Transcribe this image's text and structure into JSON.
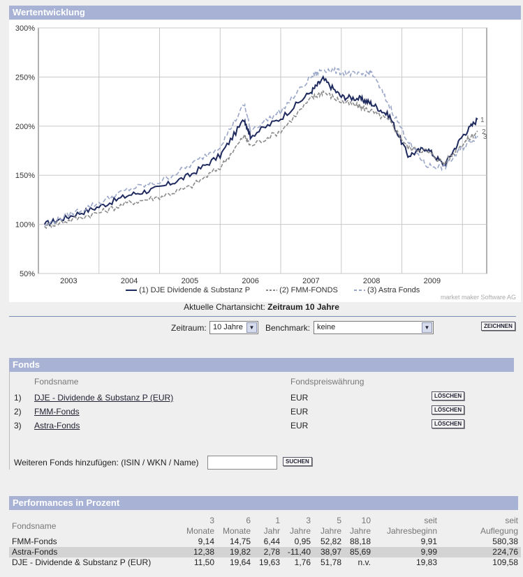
{
  "chart_section": {
    "title": "Wertentwicklung"
  },
  "chart_data": {
    "type": "line",
    "title": "Wertentwicklung",
    "xlabel": "",
    "ylabel": "",
    "ylim": [
      50,
      300
    ],
    "yticks": [
      "300%",
      "250%",
      "200%",
      "150%",
      "100%",
      "50%"
    ],
    "ytick_values": [
      300,
      250,
      200,
      150,
      100,
      50
    ],
    "xticks": [
      "2003",
      "2004",
      "2005",
      "2006",
      "2007",
      "2008",
      "2009"
    ],
    "x": [
      2002.6,
      2003.0,
      2003.5,
      2004.0,
      2004.5,
      2005.0,
      2005.5,
      2005.9,
      2006.0,
      2006.5,
      2007.0,
      2007.2,
      2007.5,
      2007.8,
      2008.0,
      2008.3,
      2008.6,
      2008.9,
      2009.2,
      2009.5,
      2009.75
    ],
    "series": [
      {
        "name": "(1) DJE Dividende & Substanz P",
        "label": "1",
        "color": "#1f2a5e",
        "dash": "",
        "values": [
          100,
          108,
          118,
          130,
          137,
          150,
          170,
          207,
          190,
          208,
          235,
          248,
          230,
          228,
          223,
          210,
          170,
          178,
          160,
          190,
          207
        ]
      },
      {
        "name": "(2) FMM-FONDS",
        "label": "2",
        "color": "#8a8a8a",
        "dash": "5,2",
        "values": [
          98,
          104,
          112,
          122,
          128,
          138,
          158,
          190,
          180,
          195,
          228,
          235,
          225,
          220,
          215,
          205,
          178,
          175,
          162,
          182,
          195
        ]
      },
      {
        "name": "(3) Astra Fonds",
        "label": "3",
        "color": "#9aa6c8",
        "dash": "6,3",
        "values": [
          99,
          110,
          122,
          136,
          143,
          160,
          180,
          222,
          196,
          215,
          250,
          258,
          255,
          252,
          255,
          220,
          185,
          160,
          158,
          178,
          190
        ]
      }
    ],
    "legend_position": "bottom",
    "grid": true
  },
  "caption": {
    "prefix": "Aktuelle Chartansicht:",
    "value": "Zeitraum 10 Jahre"
  },
  "credit": "market maker Software AG",
  "controls": {
    "zeitraum_label": "Zeitraum:",
    "zeitraum_value": "10 Jahre",
    "benchmark_label": "Benchmark:",
    "benchmark_value": "keine",
    "draw_button": "ZEICHNEN"
  },
  "fonds": {
    "title": "Fonds",
    "col_name": "Fondsname",
    "col_currency": "Fondspreiswährung",
    "items": [
      {
        "num": "1)",
        "name": "DJE - Dividende & Substanz P (EUR)",
        "currency": "EUR",
        "delete": "LÖSCHEN"
      },
      {
        "num": "2)",
        "name": "FMM-Fonds",
        "currency": "EUR",
        "delete": "LÖSCHEN"
      },
      {
        "num": "3)",
        "name": "Astra-Fonds",
        "currency": "EUR",
        "delete": "LÖSCHEN"
      }
    ],
    "add_label": "Weiteren Fonds hinzufügen: (ISIN / WKN / Name)",
    "add_value": "",
    "search_button": "SUCHEN"
  },
  "performance": {
    "title": "Performances in Prozent",
    "headers_top": [
      "",
      "3",
      "6",
      "1",
      "3",
      "5",
      "10",
      "seit",
      "seit"
    ],
    "headers_bottom": [
      "Fondsname",
      "Monate",
      "Monate",
      "Jahr",
      "Jahre",
      "Jahre",
      "Jahre",
      "Jahresbeginn",
      "Auflegung"
    ],
    "rows": [
      [
        "FMM-Fonds",
        "9,14",
        "14,75",
        "6,44",
        "0,95",
        "52,82",
        "88,18",
        "9,91",
        "580,38"
      ],
      [
        "Astra-Fonds",
        "12,38",
        "19,82",
        "2,78",
        "-11,40",
        "38,97",
        "85,69",
        "9,99",
        "224,76"
      ],
      [
        "DJE - Dividende & Substanz P (EUR)",
        "11,50",
        "19,64",
        "19,63",
        "1,76",
        "51,78",
        "n.v.",
        "19,83",
        "109,58"
      ]
    ]
  }
}
